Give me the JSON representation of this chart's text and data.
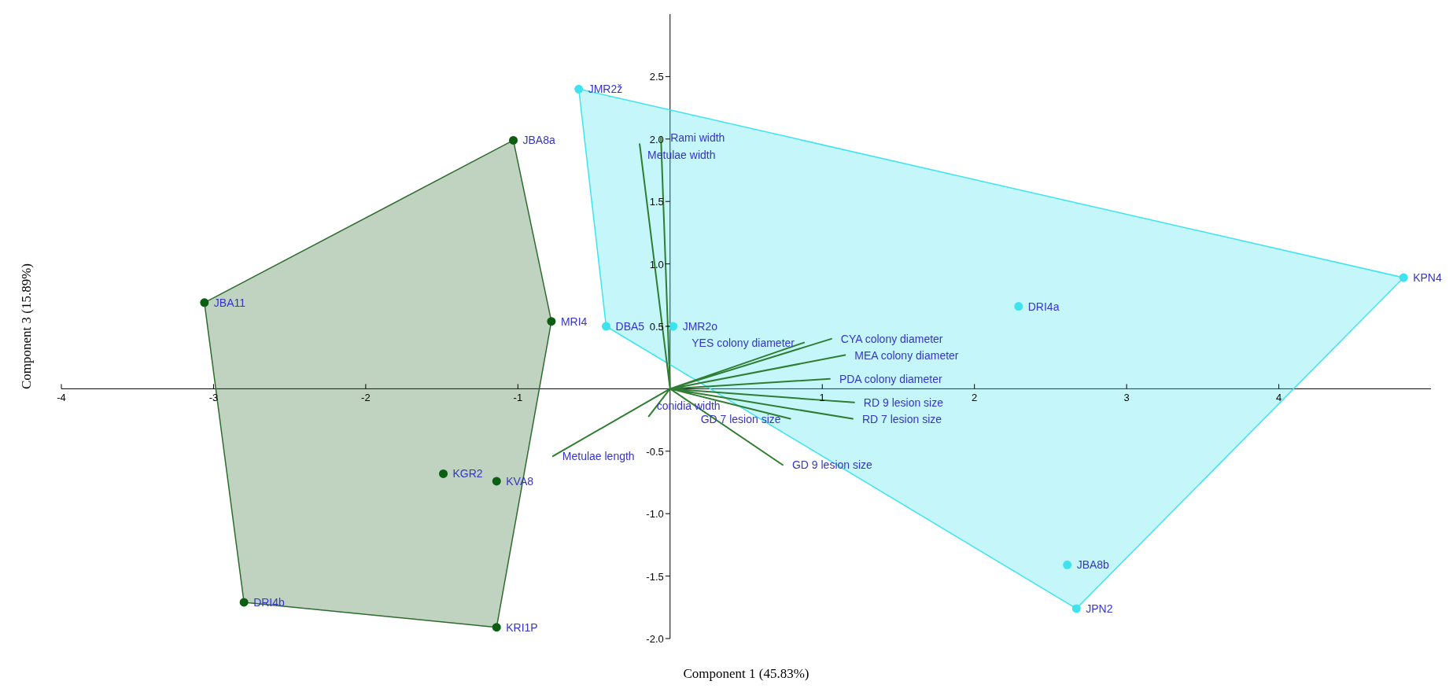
{
  "chart_data": {
    "type": "scatter",
    "xlabel": "Component 1 (45.83%)",
    "ylabel": "Component 3 (15.89%)",
    "xlim": [
      -4,
      5
    ],
    "xticks": [
      -4,
      -3,
      -2,
      -1,
      1,
      2,
      3,
      4
    ],
    "ylim": [
      -2,
      3
    ],
    "yticks": [
      {
        "value": -2,
        "label": "-2.0"
      },
      -1.5,
      {
        "value": -1,
        "label": "-1.0"
      },
      -0.5,
      0.5,
      {
        "value": 1,
        "label": "1.0"
      },
      1.5,
      {
        "value": 2,
        "label": "2.0"
      },
      2.5
    ],
    "grid": false,
    "legend": false,
    "series": [
      {
        "type": "area",
        "color": "#2e6b2e",
        "x": [
          -1.03,
          -0.78,
          -1.14,
          -2.8,
          -3.06
        ],
        "values": [
          1.99,
          0.54,
          -1.91,
          -1.71,
          0.69
        ]
      },
      {
        "type": "area",
        "color": "#3fe3ee",
        "x": [
          -0.6,
          4.82,
          2.67,
          -0.42
        ],
        "values": [
          2.4,
          0.89,
          -1.76,
          0.5
        ]
      },
      {
        "color": "#0b5e12",
        "marker": "circle",
        "x": [
          -1.03,
          -3.06,
          -0.78,
          -1.49,
          -1.14,
          -2.8,
          -1.14
        ],
        "values": [
          1.99,
          0.69,
          0.54,
          -0.68,
          -0.74,
          -1.71,
          -1.91
        ]
      },
      {
        "color": "#3fe3ee",
        "marker": "circle",
        "x": [
          -0.6,
          -0.42,
          0.02,
          2.29,
          4.82,
          2.61,
          2.67
        ],
        "values": [
          2.4,
          0.5,
          0.5,
          0.66,
          0.89,
          -1.41,
          -1.76
        ]
      },
      {
        "type": "line",
        "color": "#2e7d32",
        "x": [
          0,
          -0.06,
          null,
          0,
          -0.2,
          null,
          0,
          1.06,
          null,
          0,
          0.88,
          null,
          0,
          1.15,
          null,
          0,
          1.05,
          null,
          0,
          1.21,
          null,
          0,
          1.2,
          null,
          0,
          0.79,
          null,
          0,
          -0.14,
          null,
          0,
          -0.77,
          null,
          0,
          0.74
        ],
        "values": [
          0,
          2.01,
          null,
          0,
          1.96,
          null,
          0,
          0.4,
          null,
          0,
          0.37,
          null,
          0,
          0.27,
          null,
          0,
          0.08,
          null,
          0,
          -0.11,
          null,
          0,
          -0.24,
          null,
          0,
          -0.24,
          null,
          0,
          -0.22,
          null,
          0,
          -0.54,
          null,
          0,
          -0.61
        ]
      }
    ],
    "annotations": [
      {
        "text": "JBA8a",
        "x": -1.03,
        "y": 1.99
      },
      {
        "text": "JBA11",
        "x": -3.06,
        "y": 0.69
      },
      {
        "text": "MRI4",
        "x": -0.78,
        "y": 0.54
      },
      {
        "text": "KGR2",
        "x": -1.49,
        "y": -0.68
      },
      {
        "text": "KVA8",
        "x": -1.14,
        "y": -0.74
      },
      {
        "text": "DRI4b",
        "x": -2.8,
        "y": -1.71
      },
      {
        "text": "KRI1P",
        "x": -1.14,
        "y": -1.91
      },
      {
        "text": "JMR2ž",
        "x": -0.6,
        "y": 2.4
      },
      {
        "text": "DBA5",
        "x": -0.42,
        "y": 0.5
      },
      {
        "text": "JMR2o",
        "x": 0.02,
        "y": 0.5
      },
      {
        "text": "DRI4a",
        "x": 2.29,
        "y": 0.66
      },
      {
        "text": "KPN4",
        "x": 4.82,
        "y": 0.89
      },
      {
        "text": "JBA8b",
        "x": 2.61,
        "y": -1.41
      },
      {
        "text": "JPN2",
        "x": 2.67,
        "y": -1.76
      },
      {
        "text": "Rami width",
        "x": -0.06,
        "y": 2.01
      },
      {
        "text": "Metulae width",
        "x": -0.2,
        "y": 1.96
      },
      {
        "text": "CYA colony diameter",
        "x": 1.06,
        "y": 0.4
      },
      {
        "text": "YES colony diameter",
        "x": 0.88,
        "y": 0.37
      },
      {
        "text": "MEA colony diameter",
        "x": 1.15,
        "y": 0.27
      },
      {
        "text": "PDA colony diameter",
        "x": 1.05,
        "y": 0.08
      },
      {
        "text": "RD 9 lesion size",
        "x": 1.21,
        "y": -0.11
      },
      {
        "text": "RD 7 lesion size",
        "x": 1.2,
        "y": -0.24
      },
      {
        "text": "GD 7 lesion size",
        "x": 0.79,
        "y": -0.24
      },
      {
        "text": "conidia width",
        "x": -0.14,
        "y": -0.22
      },
      {
        "text": "Metulae length",
        "x": -0.77,
        "y": -0.54
      },
      {
        "text": "GD 9 lesion size",
        "x": 0.74,
        "y": -0.61
      }
    ]
  }
}
